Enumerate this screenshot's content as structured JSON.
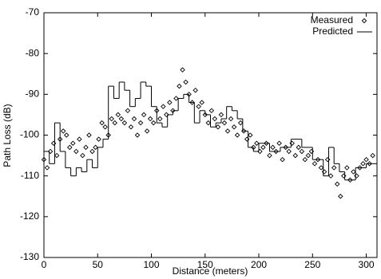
{
  "chart_data": {
    "type": "scatter",
    "xlabel": "Distance (meters)",
    "ylabel": "Path Loss (dB)",
    "xlim": [
      0,
      310
    ],
    "ylim": [
      -130,
      -70
    ],
    "xticks": [
      0,
      50,
      100,
      150,
      200,
      250,
      300
    ],
    "yticks": [
      -130,
      -120,
      -110,
      -100,
      -90,
      -80,
      -70
    ],
    "legend": "top-right",
    "series": [
      {
        "name": "Measured",
        "color": "#000000",
        "mode": "markers",
        "x": [
          0,
          3,
          6,
          9,
          12,
          15,
          18,
          21,
          24,
          27,
          30,
          33,
          36,
          39,
          42,
          45,
          48,
          51,
          54,
          57,
          60,
          63,
          66,
          69,
          72,
          75,
          78,
          81,
          84,
          87,
          90,
          93,
          96,
          99,
          102,
          105,
          108,
          111,
          114,
          117,
          120,
          123,
          126,
          129,
          132,
          135,
          138,
          141,
          144,
          147,
          150,
          153,
          156,
          159,
          162,
          165,
          168,
          171,
          174,
          177,
          180,
          183,
          186,
          189,
          192,
          195,
          198,
          201,
          204,
          207,
          210,
          213,
          216,
          219,
          222,
          225,
          228,
          231,
          234,
          237,
          240,
          243,
          246,
          249,
          252,
          255,
          258,
          261,
          264,
          267,
          270,
          273,
          276,
          279,
          282,
          285,
          288,
          291,
          294,
          297,
          300,
          303,
          306
        ],
        "values": [
          -106,
          -108,
          -104,
          -102,
          -105,
          -101,
          -99,
          -100,
          -103,
          -102,
          -104,
          -101,
          -105,
          -103,
          -100,
          -104,
          -103,
          -101,
          -97,
          -98,
          -100,
          -96,
          -97,
          -95,
          -96,
          -97,
          -94,
          -98,
          -96,
          -100,
          -97,
          -95,
          -99,
          -96,
          -97,
          -94,
          -96,
          -93,
          -95,
          -92,
          -94,
          -91,
          -88,
          -84,
          -87,
          -90,
          -92,
          -89,
          -93,
          -92,
          -95,
          -97,
          -94,
          -96,
          -98,
          -95,
          -97,
          -99,
          -96,
          -98,
          -100,
          -97,
          -99,
          -101,
          -100,
          -103,
          -102,
          -104,
          -103,
          -102,
          -105,
          -103,
          -104,
          -102,
          -106,
          -103,
          -104,
          -102,
          -105,
          -103,
          -104,
          -106,
          -105,
          -104,
          -107,
          -106,
          -108,
          -109,
          -106,
          -110,
          -108,
          -112,
          -115,
          -110,
          -108,
          -111,
          -109,
          -110,
          -108,
          -107,
          -106,
          -107,
          -105
        ]
      },
      {
        "name": "Predicted",
        "color": "#000000",
        "mode": "step",
        "x": [
          0,
          5,
          10,
          15,
          20,
          25,
          30,
          35,
          40,
          45,
          50,
          55,
          60,
          65,
          70,
          75,
          80,
          85,
          90,
          95,
          100,
          105,
          110,
          115,
          120,
          125,
          130,
          135,
          140,
          145,
          150,
          155,
          160,
          165,
          170,
          175,
          180,
          185,
          190,
          195,
          200,
          210,
          220,
          230,
          240,
          250,
          260,
          265,
          270,
          275,
          280,
          290,
          300
        ],
        "values": [
          -104,
          -107,
          -97,
          -104,
          -108,
          -110,
          -108,
          -109,
          -106,
          -108,
          -103,
          -101,
          -88,
          -91,
          -87,
          -89,
          -93,
          -91,
          -87,
          -88,
          -93,
          -97,
          -98,
          -95,
          -94,
          -91,
          -90,
          -92,
          -97,
          -94,
          -95,
          -98,
          -97,
          -96,
          -93,
          -94,
          -96,
          -99,
          -103,
          -104,
          -102,
          -104,
          -103,
          -101,
          -103,
          -106,
          -110,
          -103,
          -107,
          -109,
          -111,
          -108,
          -107
        ]
      }
    ]
  }
}
